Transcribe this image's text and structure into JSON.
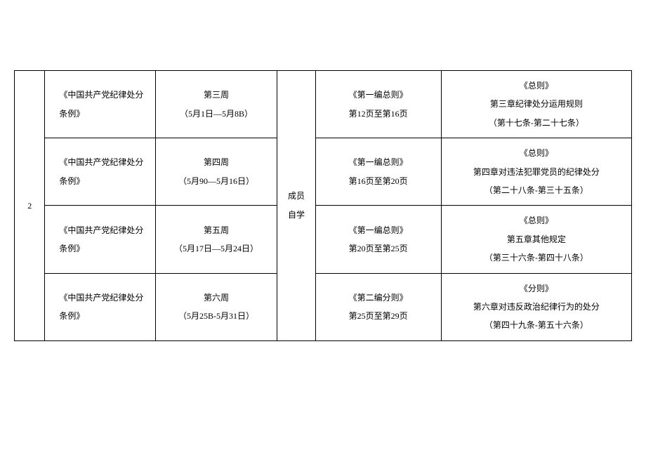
{
  "table": {
    "border_color": "#000000",
    "background_color": "#ffffff",
    "font_size": 12,
    "text_color": "#000000",
    "seq": "2",
    "method": {
      "line1": "成员",
      "line2": "自学"
    },
    "rows": [
      {
        "book": "《中国共产党纪律处分条例》",
        "week_line1": "第三周",
        "week_line2": "（5月1日—5月8B）",
        "section_line1": "《第一编总则》",
        "section_line2": "第12页至第16页",
        "content_line1": "《总则》",
        "content_line2": "第三章纪律处分运用规则",
        "content_line3": "（第十七条-第二十七条）"
      },
      {
        "book": "《中国共产党纪律处分条例》",
        "week_line1": "第四周",
        "week_line2": "（5月90—5月16日）",
        "section_line1": "《第一编总则》",
        "section_line2": "第16页至第20页",
        "content_line1": "《总则》",
        "content_line2": "第四章对违法犯罪党员的纪律处分",
        "content_line3": "（第二十八条-第三十五条）"
      },
      {
        "book": "《中国共产党纪律处分条例》",
        "week_line1": "第五周",
        "week_line2": "（5月17日—5月24日）",
        "section_line1": "《第一编总则》",
        "section_line2": "第20页至第25页",
        "content_line1": "《总则》",
        "content_line2": "第五章其他规定",
        "content_line3": "（第三十六条-第四十八条）"
      },
      {
        "book": "《中国共产党纪律处分条例》",
        "week_line1": "第六周",
        "week_line2": "（5月25B-5月31日）",
        "section_line1": "《第二编分则》",
        "section_line2": "第25页至第29页",
        "content_line1": "《分则》",
        "content_line2": "第六章对违反政治纪律行为的处分",
        "content_line3": "（第四十九条-第五十六条）"
      }
    ]
  }
}
